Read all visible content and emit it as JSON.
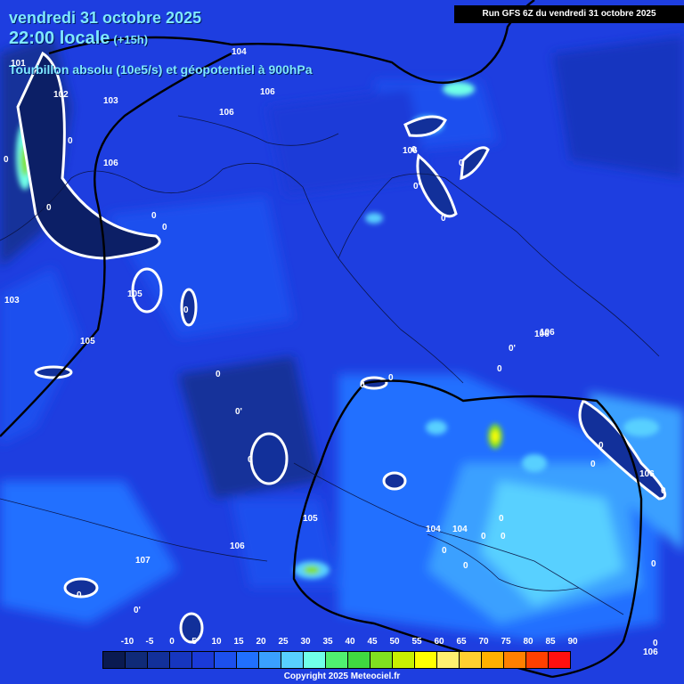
{
  "title": {
    "date": "vendredi 31 octobre 2025",
    "time": "22:00 locale",
    "lead": "(+15h)",
    "field": "Tourbillon absolu (10e5/s) et géopotentiel à 900hPa"
  },
  "run": "Run GFS 6Z du vendredi 31 octobre 2025",
  "copyright": "Copyright 2025 Meteociel.fr",
  "legend": {
    "ticks": [
      "-10",
      "-5",
      "0",
      "5",
      "10",
      "15",
      "20",
      "25",
      "30",
      "35",
      "40",
      "45",
      "50",
      "55",
      "60",
      "65",
      "70",
      "75",
      "80",
      "85",
      "90"
    ],
    "colors": [
      "#0a1a50",
      "#0f2a78",
      "#12309a",
      "#1636bf",
      "#1a3ad8",
      "#1c50ee",
      "#2070ff",
      "#3aa0ff",
      "#58d0ff",
      "#70ffe8",
      "#50f070",
      "#40d840",
      "#80e020",
      "#c8f000",
      "#ffff00",
      "#fff070",
      "#ffd030",
      "#ffb000",
      "#ff8000",
      "#ff4000",
      "#ff1010"
    ]
  },
  "contour_labels": [
    "101",
    "102",
    "103",
    "104",
    "106",
    "106",
    "106",
    "106",
    "106",
    "105",
    "103",
    "105",
    "106",
    "105",
    "106",
    "107",
    "104",
    "104",
    "106",
    "106"
  ],
  "vorticity_labels": [
    "0",
    "0",
    "0",
    "0",
    "0",
    "0",
    "0",
    "0",
    "0",
    "0",
    "0'",
    "0'",
    "0",
    "0",
    "0",
    "0",
    "0",
    "0'",
    "0'",
    "0",
    "0",
    "0",
    "0",
    "0",
    "0",
    "0",
    "0",
    "0",
    "0"
  ]
}
